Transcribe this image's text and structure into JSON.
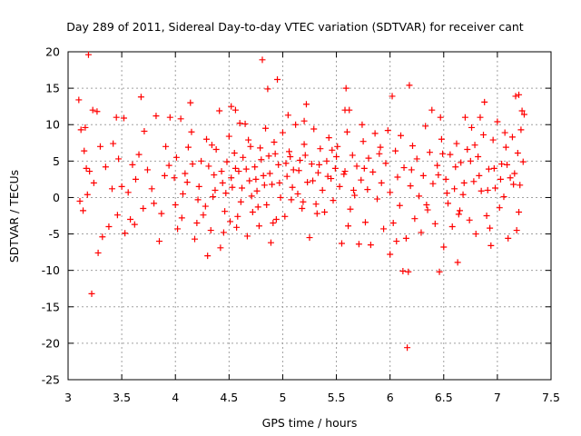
{
  "chart_data": {
    "type": "scatter",
    "title": "Day 289 of 2011, Sidereal Day-to-day VTEC variation (SDTVAR) for receiver cant",
    "xlabel": "GPS time / hours",
    "ylabel": "SDTVAR / TECUs",
    "xlim": [
      3,
      7.5
    ],
    "ylim": [
      -25,
      20
    ],
    "xticks": [
      "3",
      "3.5",
      "4",
      "4.5",
      "5",
      "5.5",
      "6",
      "6.5",
      "7",
      "7.5"
    ],
    "yticks": [
      "20",
      "15",
      "10",
      "5",
      "0",
      "-5",
      "-10",
      "-15",
      "-20",
      "-25"
    ],
    "grid": true,
    "marker": "+",
    "series": [
      {
        "name": "SDTVAR",
        "color": "#ff0000",
        "points": [
          [
            3.19,
            19.6
          ],
          [
            3.22,
            -13.2
          ],
          [
            4.81,
            18.9
          ],
          [
            4.95,
            16.2
          ],
          [
            4.86,
            14.9
          ],
          [
            5.59,
            15.0
          ],
          [
            6.18,
            15.4
          ],
          [
            6.02,
            13.9
          ],
          [
            6.16,
            -20.6
          ],
          [
            6.12,
            -10.1
          ],
          [
            6.17,
            -10.2
          ],
          [
            6.46,
            -10.2
          ],
          [
            6.63,
            -8.9
          ],
          [
            6.0,
            -7.8
          ],
          [
            3.1,
            13.4
          ],
          [
            3.68,
            13.8
          ],
          [
            3.27,
            11.8
          ],
          [
            3.23,
            12.0
          ],
          [
            3.82,
            11.2
          ],
          [
            3.95,
            11.0
          ],
          [
            4.05,
            10.8
          ],
          [
            4.14,
            13.0
          ],
          [
            4.52,
            12.5
          ],
          [
            4.56,
            12.0
          ],
          [
            4.6,
            10.2
          ],
          [
            5.05,
            11.3
          ],
          [
            5.22,
            12.8
          ],
          [
            5.2,
            10.5
          ],
          [
            5.58,
            12.0
          ],
          [
            5.62,
            12.0
          ],
          [
            5.74,
            10.0
          ],
          [
            6.39,
            12.0
          ],
          [
            6.47,
            11.0
          ],
          [
            6.7,
            11.0
          ],
          [
            6.84,
            11.0
          ],
          [
            6.88,
            13.1
          ],
          [
            7.17,
            13.9
          ],
          [
            7.2,
            14.1
          ],
          [
            7.23,
            11.9
          ],
          [
            7.25,
            11.4
          ],
          [
            3.12,
            9.3
          ],
          [
            3.16,
            9.6
          ],
          [
            3.45,
            11.0
          ],
          [
            3.52,
            10.9
          ],
          [
            3.35,
            4.2
          ],
          [
            3.32,
            -5.4
          ],
          [
            3.28,
            -7.6
          ],
          [
            3.38,
            -4.0
          ],
          [
            3.14,
            -1.8
          ],
          [
            3.11,
            -0.5
          ],
          [
            3.18,
            0.4
          ],
          [
            3.24,
            2.0
          ],
          [
            3.2,
            3.6
          ],
          [
            3.17,
            4.0
          ],
          [
            3.15,
            6.4
          ],
          [
            3.3,
            7.0
          ],
          [
            3.42,
            7.4
          ],
          [
            3.47,
            5.3
          ],
          [
            3.41,
            1.2
          ],
          [
            3.46,
            -2.4
          ],
          [
            3.53,
            -4.9
          ],
          [
            3.58,
            -3.0
          ],
          [
            3.62,
            -3.7
          ],
          [
            3.56,
            0.7
          ],
          [
            3.63,
            2.5
          ],
          [
            3.66,
            5.9
          ],
          [
            3.71,
            9.1
          ],
          [
            3.74,
            3.8
          ],
          [
            3.78,
            1.2
          ],
          [
            3.8,
            -0.8
          ],
          [
            3.87,
            -2.2
          ],
          [
            3.85,
            -6.0
          ],
          [
            3.91,
            7.0
          ],
          [
            3.94,
            4.4
          ],
          [
            3.99,
            2.7
          ],
          [
            4.02,
            -4.3
          ],
          [
            4.0,
            -1.0
          ],
          [
            4.07,
            0.5
          ],
          [
            4.09,
            3.3
          ],
          [
            4.12,
            6.9
          ],
          [
            4.15,
            9.0
          ],
          [
            4.18,
            -5.7
          ],
          [
            4.2,
            -3.5
          ],
          [
            4.22,
            1.5
          ],
          [
            4.24,
            5.0
          ],
          [
            4.26,
            -2.4
          ],
          [
            4.29,
            8.0
          ],
          [
            4.3,
            -8.0
          ],
          [
            4.33,
            -4.5
          ],
          [
            4.35,
            0.1
          ],
          [
            4.36,
            3.1
          ],
          [
            4.38,
            6.6
          ],
          [
            4.41,
            11.9
          ],
          [
            4.42,
            -6.9
          ],
          [
            4.44,
            2.0
          ],
          [
            4.46,
            -1.9
          ],
          [
            4.48,
            4.9
          ],
          [
            4.5,
            8.4
          ],
          [
            4.51,
            -3.3
          ],
          [
            4.53,
            1.4
          ],
          [
            4.55,
            6.1
          ],
          [
            4.57,
            -4.1
          ],
          [
            4.59,
            3.6
          ],
          [
            4.61,
            -0.6
          ],
          [
            4.63,
            5.5
          ],
          [
            4.65,
            10.1
          ],
          [
            4.67,
            -5.3
          ],
          [
            4.69,
            2.3
          ],
          [
            4.7,
            7.0
          ],
          [
            4.72,
            -2.0
          ],
          [
            4.74,
            4.2
          ],
          [
            4.76,
            0.9
          ],
          [
            4.78,
            -3.9
          ],
          [
            4.79,
            6.8
          ],
          [
            4.82,
            3.0
          ],
          [
            4.84,
            9.5
          ],
          [
            4.85,
            -1.0
          ],
          [
            4.87,
            5.7
          ],
          [
            4.89,
            -6.2
          ],
          [
            4.9,
            1.8
          ],
          [
            4.92,
            7.6
          ],
          [
            4.94,
            -3.0
          ],
          [
            4.96,
            4.5
          ],
          [
            4.98,
            0.0
          ],
          [
            5.0,
            8.9
          ],
          [
            5.02,
            -2.6
          ],
          [
            5.04,
            2.9
          ],
          [
            5.06,
            6.3
          ],
          [
            5.08,
            -0.3
          ],
          [
            5.1,
            3.8
          ],
          [
            5.12,
            10.0
          ],
          [
            5.14,
            0.5
          ],
          [
            5.16,
            5.1
          ],
          [
            5.18,
            -1.5
          ],
          [
            5.2,
            7.3
          ],
          [
            5.23,
            2.1
          ],
          [
            5.25,
            -5.5
          ],
          [
            5.27,
            4.6
          ],
          [
            5.29,
            9.4
          ],
          [
            5.31,
            -0.9
          ],
          [
            5.33,
            3.4
          ],
          [
            5.35,
            6.7
          ],
          [
            5.37,
            1.0
          ],
          [
            5.39,
            -2.0
          ],
          [
            5.41,
            5.0
          ],
          [
            5.43,
            8.2
          ],
          [
            5.45,
            2.6
          ],
          [
            5.47,
            -0.4
          ],
          [
            5.49,
            4.0
          ],
          [
            5.51,
            7.0
          ],
          [
            5.53,
            1.5
          ],
          [
            5.55,
            -6.3
          ],
          [
            5.57,
            3.2
          ],
          [
            5.6,
            9.0
          ],
          [
            5.63,
            -1.6
          ],
          [
            5.65,
            5.8
          ],
          [
            5.67,
            0.3
          ],
          [
            5.69,
            4.3
          ],
          [
            5.71,
            -6.4
          ],
          [
            5.73,
            2.4
          ],
          [
            5.75,
            7.7
          ],
          [
            5.77,
            -3.4
          ],
          [
            5.79,
            1.1
          ],
          [
            5.8,
            5.4
          ],
          [
            5.82,
            -6.5
          ],
          [
            5.84,
            3.5
          ],
          [
            5.86,
            8.8
          ],
          [
            5.88,
            -0.2
          ],
          [
            5.9,
            6.0
          ],
          [
            5.92,
            2.0
          ],
          [
            5.94,
            -4.3
          ],
          [
            5.96,
            4.7
          ],
          [
            5.98,
            9.2
          ],
          [
            6.0,
            0.7
          ],
          [
            6.03,
            -3.5
          ],
          [
            6.05,
            6.4
          ],
          [
            6.07,
            2.8
          ],
          [
            6.09,
            -1.1
          ],
          [
            6.1,
            8.5
          ],
          [
            6.13,
            4.1
          ],
          [
            6.15,
            -5.6
          ],
          [
            6.19,
            1.6
          ],
          [
            6.21,
            7.1
          ],
          [
            6.23,
            -2.9
          ],
          [
            6.25,
            5.3
          ],
          [
            6.27,
            0.2
          ],
          [
            6.29,
            -4.8
          ],
          [
            6.31,
            3.0
          ],
          [
            6.33,
            9.8
          ],
          [
            6.35,
            -1.7
          ],
          [
            6.37,
            6.2
          ],
          [
            6.4,
            1.9
          ],
          [
            6.42,
            -3.6
          ],
          [
            6.44,
            4.4
          ],
          [
            6.48,
            8.0
          ],
          [
            6.5,
            -6.8
          ],
          [
            6.52,
            2.5
          ],
          [
            6.54,
            -0.8
          ],
          [
            6.56,
            5.9
          ],
          [
            6.58,
            -4.0
          ],
          [
            6.6,
            1.2
          ],
          [
            6.62,
            7.4
          ],
          [
            6.64,
            -2.3
          ],
          [
            6.66,
            4.8
          ],
          [
            6.68,
            0.4
          ],
          [
            6.72,
            6.6
          ],
          [
            6.74,
            -3.1
          ],
          [
            6.76,
            9.6
          ],
          [
            6.78,
            2.2
          ],
          [
            6.8,
            -5.0
          ],
          [
            6.82,
            5.6
          ],
          [
            6.85,
            0.9
          ],
          [
            6.87,
            8.6
          ],
          [
            6.9,
            -2.5
          ],
          [
            6.92,
            3.9
          ],
          [
            6.94,
            -6.6
          ],
          [
            6.96,
            7.9
          ],
          [
            6.98,
            1.3
          ],
          [
            7.0,
            10.4
          ],
          [
            7.02,
            -1.4
          ],
          [
            7.04,
            4.6
          ],
          [
            7.06,
            0.1
          ],
          [
            7.08,
            6.9
          ],
          [
            7.1,
            -5.6
          ],
          [
            7.12,
            2.7
          ],
          [
            7.14,
            8.3
          ],
          [
            7.16,
            3.3
          ],
          [
            7.18,
            -4.5
          ],
          [
            7.19,
            6.1
          ],
          [
            7.21,
            1.7
          ],
          [
            7.22,
            9.3
          ],
          [
            7.24,
            4.9
          ],
          [
            4.01,
            5.5
          ],
          [
            4.11,
            2.1
          ],
          [
            4.21,
            -0.3
          ],
          [
            4.31,
            4.3
          ],
          [
            4.37,
            1.0
          ],
          [
            4.43,
            3.6
          ],
          [
            4.47,
            0.6
          ],
          [
            4.52,
            2.7
          ],
          [
            4.56,
            4.0
          ],
          [
            4.62,
            1.3
          ],
          [
            4.66,
            3.9
          ],
          [
            4.71,
            0.2
          ],
          [
            4.75,
            2.5
          ],
          [
            4.8,
            5.2
          ],
          [
            4.83,
            1.7
          ],
          [
            4.88,
            3.3
          ],
          [
            4.93,
            6.0
          ],
          [
            4.97,
            2.0
          ],
          [
            5.03,
            4.7
          ],
          [
            5.09,
            1.4
          ],
          [
            5.15,
            3.7
          ],
          [
            5.21,
            5.8
          ],
          [
            5.28,
            2.3
          ],
          [
            5.34,
            4.5
          ],
          [
            5.42,
            2.9
          ],
          [
            5.5,
            5.6
          ],
          [
            5.58,
            3.6
          ],
          [
            5.66,
            1.0
          ],
          [
            6.45,
            3.1
          ],
          [
            6.53,
            0.6
          ],
          [
            6.61,
            4.2
          ],
          [
            6.69,
            2.0
          ],
          [
            6.75,
            5.0
          ],
          [
            6.83,
            3.0
          ],
          [
            6.91,
            1.0
          ],
          [
            6.97,
            4.0
          ],
          [
            7.03,
            2.5
          ],
          [
            7.09,
            4.5
          ],
          [
            7.15,
            1.8
          ],
          [
            3.5,
            1.5
          ],
          [
            3.6,
            4.5
          ],
          [
            3.7,
            -1.5
          ],
          [
            3.9,
            3.0
          ],
          [
            4.06,
            -2.8
          ],
          [
            4.16,
            4.6
          ],
          [
            4.28,
            -1.2
          ],
          [
            4.34,
            7.2
          ],
          [
            4.45,
            -4.8
          ],
          [
            4.58,
            -2.6
          ],
          [
            4.68,
            7.9
          ],
          [
            4.77,
            -1.3
          ],
          [
            4.91,
            -3.5
          ],
          [
            5.07,
            5.6
          ],
          [
            5.19,
            -0.6
          ],
          [
            5.32,
            -2.2
          ],
          [
            5.46,
            6.5
          ],
          [
            5.61,
            -3.9
          ],
          [
            5.76,
            4.0
          ],
          [
            5.91,
            6.9
          ],
          [
            6.06,
            -6.0
          ],
          [
            6.2,
            3.8
          ],
          [
            6.34,
            -1.0
          ],
          [
            6.49,
            6.0
          ],
          [
            6.65,
            -1.8
          ],
          [
            6.79,
            7.2
          ],
          [
            6.93,
            -4.2
          ],
          [
            7.07,
            8.9
          ],
          [
            7.2,
            -2.0
          ]
        ]
      }
    ]
  }
}
